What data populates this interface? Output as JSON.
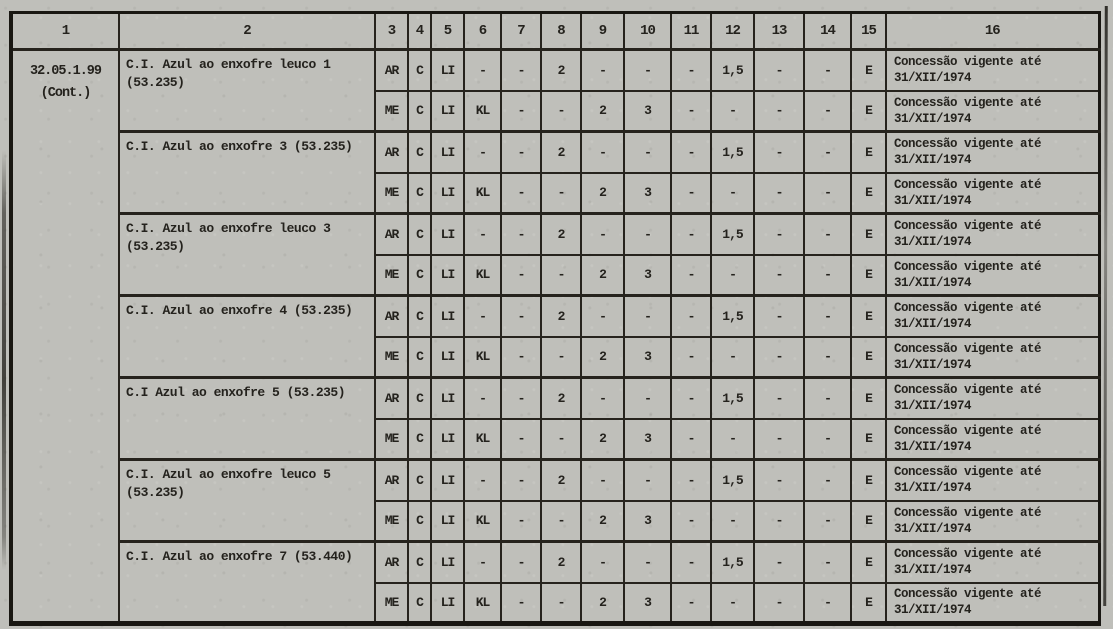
{
  "colors": {
    "paper": "#bfbfba",
    "ink": "#24221d",
    "line": "#26231d"
  },
  "table": {
    "headers": [
      "1",
      "2",
      "3",
      "4",
      "5",
      "6",
      "7",
      "8",
      "9",
      "10",
      "11",
      "12",
      "13",
      "14",
      "15",
      "16"
    ],
    "code_lines": [
      "32.05.1.99",
      "(Cont.)"
    ],
    "obs_repeated": [
      "Concessão vigente até",
      "31/XII/1974"
    ],
    "groups": [
      {
        "name_lines": [
          "C.I. Azul ao enxofre leuco 1",
          "(53.235)"
        ],
        "rows": [
          {
            "cells": [
              "AR",
              "C",
              "LI",
              "-",
              "-",
              "2",
              "-",
              "-",
              "-",
              "1,5",
              "-",
              "-",
              "E"
            ],
            "obs_lines": [
              "Concessão vigente até",
              "31/XII/1974"
            ]
          },
          {
            "cells": [
              "ME",
              "C",
              "LI",
              "KL",
              "-",
              "-",
              "2",
              "3",
              "-",
              "-",
              "-",
              "-",
              "E"
            ],
            "obs_lines": [
              "Concessão vigente até",
              "31/XII/1974"
            ]
          }
        ]
      },
      {
        "name_lines": [
          "C.I. Azul ao enxofre 3 (53.235)"
        ],
        "rows": [
          {
            "cells": [
              "AR",
              "C",
              "LI",
              "-",
              "-",
              "2",
              "-",
              "-",
              "-",
              "1,5",
              "-",
              "-",
              "E"
            ],
            "obs_lines": [
              "Concessão vigente até",
              "31/XII/1974"
            ]
          },
          {
            "cells": [
              "ME",
              "C",
              "LI",
              "KL",
              "-",
              "-",
              "2",
              "3",
              "-",
              "-",
              "-",
              "-",
              "E"
            ],
            "obs_lines": [
              "Concessão vigente até",
              "31/XII/1974"
            ]
          }
        ]
      },
      {
        "name_lines": [
          "C.I. Azul ao enxofre leuco 3",
          "(53.235)"
        ],
        "rows": [
          {
            "cells": [
              "AR",
              "C",
              "LI",
              "-",
              "-",
              "2",
              "-",
              "-",
              "-",
              "1,5",
              "-",
              "-",
              "E"
            ],
            "obs_lines": [
              "Concessão vigente até",
              "31/XII/1974"
            ]
          },
          {
            "cells": [
              "ME",
              "C",
              "LI",
              "KL",
              "-",
              "-",
              "2",
              "3",
              "-",
              "-",
              "-",
              "-",
              "E"
            ],
            "obs_lines": [
              "Concessão vigente até",
              "31/XII/1974"
            ]
          }
        ]
      },
      {
        "name_lines": [
          "C.I. Azul ao enxofre 4 (53.235)"
        ],
        "rows": [
          {
            "cells": [
              "AR",
              "C",
              "LI",
              "-",
              "-",
              "2",
              "-",
              "-",
              "-",
              "1,5",
              "-",
              "-",
              "E"
            ],
            "obs_lines": [
              "Concessão vigente até",
              "31/XII/1974"
            ]
          },
          {
            "cells": [
              "ME",
              "C",
              "LI",
              "KL",
              "-",
              "-",
              "2",
              "3",
              "-",
              "-",
              "-",
              "-",
              "E"
            ],
            "obs_lines": [
              "Concessão vigente até",
              "31/XII/1974"
            ]
          }
        ]
      },
      {
        "name_lines": [
          "C.I Azul ao enxofre 5 (53.235)"
        ],
        "rows": [
          {
            "cells": [
              "AR",
              "C",
              "LI",
              "-",
              "-",
              "2",
              "-",
              "-",
              "-",
              "1,5",
              "-",
              "-",
              "E"
            ],
            "obs_lines": [
              "Concessão vigente até",
              "31/XII/1974"
            ]
          },
          {
            "cells": [
              "ME",
              "C",
              "LI",
              "KL",
              "-",
              "-",
              "2",
              "3",
              "-",
              "-",
              "-",
              "-",
              "E"
            ],
            "obs_lines": [
              "Concessão vigente até",
              "31/XII/1974"
            ]
          }
        ]
      },
      {
        "name_lines": [
          "C.I. Azul ao enxofre leuco 5",
          "(53.235)"
        ],
        "rows": [
          {
            "cells": [
              "AR",
              "C",
              "LI",
              "-",
              "-",
              "2",
              "-",
              "-",
              "-",
              "1,5",
              "-",
              "-",
              "E"
            ],
            "obs_lines": [
              "Concessão vigente até",
              "31/XII/1974"
            ]
          },
          {
            "cells": [
              "ME",
              "C",
              "LI",
              "KL",
              "-",
              "-",
              "2",
              "3",
              "-",
              "-",
              "-",
              "-",
              "E"
            ],
            "obs_lines": [
              "Concessão vigente até",
              "31/XII/1974"
            ]
          }
        ]
      },
      {
        "name_lines": [
          "C.I. Azul ao enxofre 7 (53.440)"
        ],
        "rows": [
          {
            "cells": [
              "AR",
              "C",
              "LI",
              "-",
              "-",
              "2",
              "-",
              "-",
              "-",
              "1,5",
              "-",
              "-",
              "E"
            ],
            "obs_lines": [
              "Concessão vigente até",
              "31/XII/1974"
            ]
          },
          {
            "cells": [
              "ME",
              "C",
              "LI",
              "KL",
              "-",
              "-",
              "2",
              "3",
              "-",
              "-",
              "-",
              "-",
              "E"
            ],
            "obs_lines": [
              "Concessão vigente até",
              "31/XII/1974"
            ]
          }
        ]
      }
    ]
  }
}
